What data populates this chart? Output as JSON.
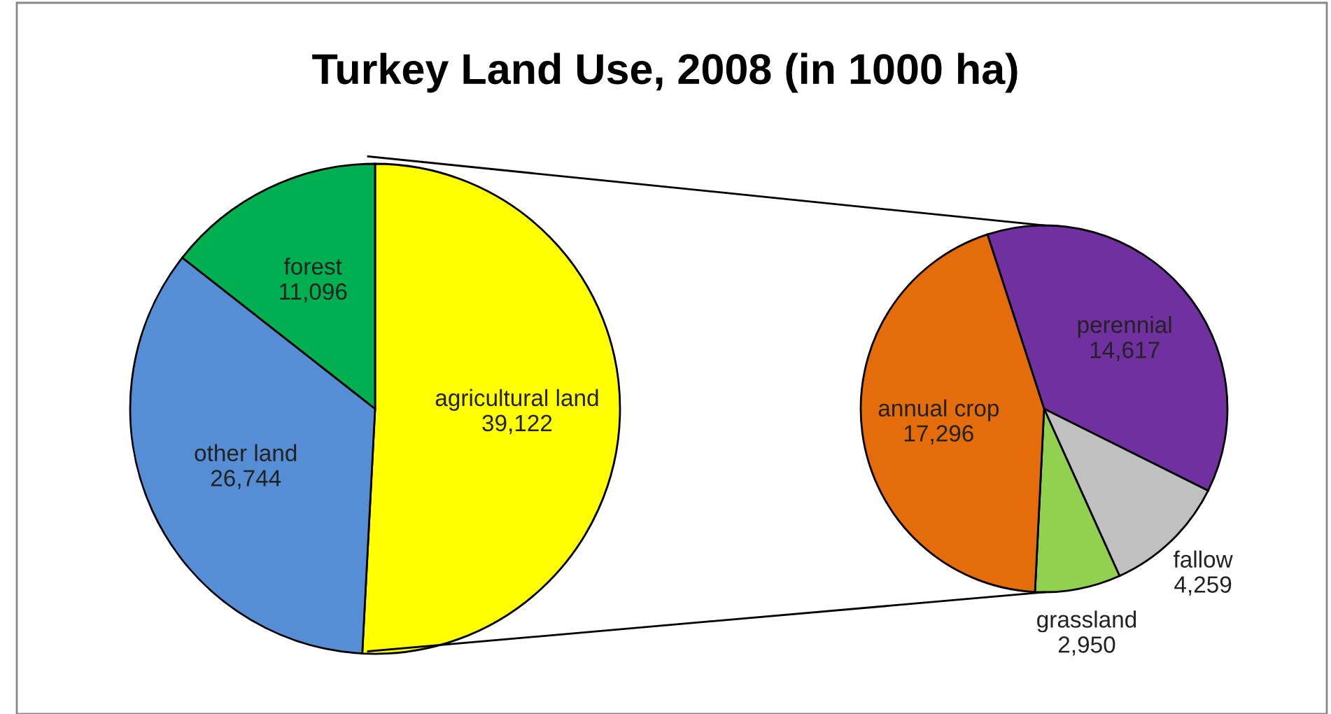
{
  "chart_data": [
    {
      "type": "pie",
      "title": "Turkey Land Use, 2008 (in 1000 ha)",
      "categories": [
        "agricultural land",
        "other land",
        "forest"
      ],
      "values": [
        39122,
        26744,
        11096
      ],
      "value_labels": [
        "39,122",
        "26,744",
        "11,096"
      ],
      "colors": [
        "#ffff00",
        "#558ed5",
        "#00b050"
      ]
    },
    {
      "type": "pie",
      "categories": [
        "perennial",
        "fallow",
        "grassland",
        "annual crop"
      ],
      "values": [
        14617,
        4259,
        2950,
        17296
      ],
      "value_labels": [
        "14,617",
        "4,259",
        "2,950",
        "17,296"
      ],
      "colors": [
        "#7030a0",
        "#c0c0c0",
        "#92d050",
        "#e46c0a"
      ]
    }
  ]
}
